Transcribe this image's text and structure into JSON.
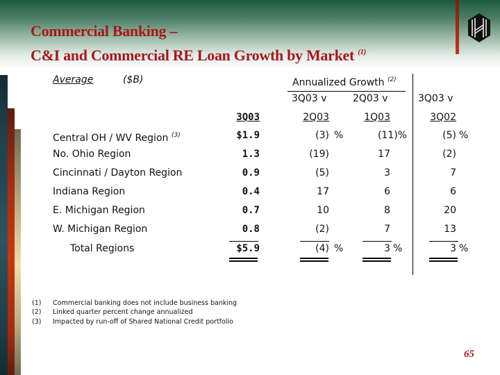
{
  "title": {
    "line1": "Commercial Banking –",
    "line2": "C&I and Commercial RE Loan Growth by Market",
    "line2_note": "(1)"
  },
  "table": {
    "label_average": "Average",
    "label_units": "($B)",
    "group_header": "Annualized Growth",
    "group_header_note": "(2)",
    "columns": [
      {
        "top": "",
        "bottom": "3Q03"
      },
      {
        "top": "3Q03 v",
        "bottom": "2Q03"
      },
      {
        "top": "2Q03 v",
        "bottom": "1Q03"
      },
      {
        "top": "3Q03 v",
        "bottom": "3Q02"
      }
    ],
    "rows": [
      {
        "name": "Central OH / WV Region",
        "note": "(3)",
        "avg": "$1.9",
        "g1": "(3)",
        "g1_pct": "%",
        "g2": "(11)%",
        "g2_pct": "",
        "g3": "(5)",
        "g3_pct": "%"
      },
      {
        "name": "No. Ohio Region",
        "note": "",
        "avg": "1.3",
        "g1": "(19)",
        "g1_pct": "",
        "g2": "17",
        "g2_pct": "",
        "g3": "(2)",
        "g3_pct": ""
      },
      {
        "name": "Cincinnati / Dayton Region",
        "note": "",
        "avg": "0.9",
        "g1": "(5)",
        "g1_pct": "",
        "g2": "3",
        "g2_pct": "",
        "g3": "7",
        "g3_pct": ""
      },
      {
        "name": "Indiana Region",
        "note": "",
        "avg": "0.4",
        "g1": "17",
        "g1_pct": "",
        "g2": "6",
        "g2_pct": "",
        "g3": "6",
        "g3_pct": ""
      },
      {
        "name": "E. Michigan Region",
        "note": "",
        "avg": "0.7",
        "g1": "10",
        "g1_pct": "",
        "g2": "8",
        "g2_pct": "",
        "g3": "20",
        "g3_pct": ""
      },
      {
        "name": "W. Michigan Region",
        "note": "",
        "avg": "0.8",
        "g1": "(2)",
        "g1_pct": "",
        "g2": "7",
        "g2_pct": "",
        "g3": "13",
        "g3_pct": ""
      }
    ],
    "total": {
      "name": "Total Regions",
      "avg": "$5.9",
      "g1": "(4)",
      "g1_pct": "%",
      "g2": "3",
      "g2_pct": "%",
      "g3": "3",
      "g3_pct": "%"
    }
  },
  "footnotes": [
    {
      "num": "(1)",
      "text": "Commercial banking does not include business banking"
    },
    {
      "num": "(2)",
      "text": "Linked quarter percent change annualized"
    },
    {
      "num": "(3)",
      "text": "Impacted by run-off of Shared National Credit portfolio"
    }
  ],
  "page_number": "65",
  "colors": {
    "title": "#a8171c",
    "header_green": "#1d5a3e"
  }
}
